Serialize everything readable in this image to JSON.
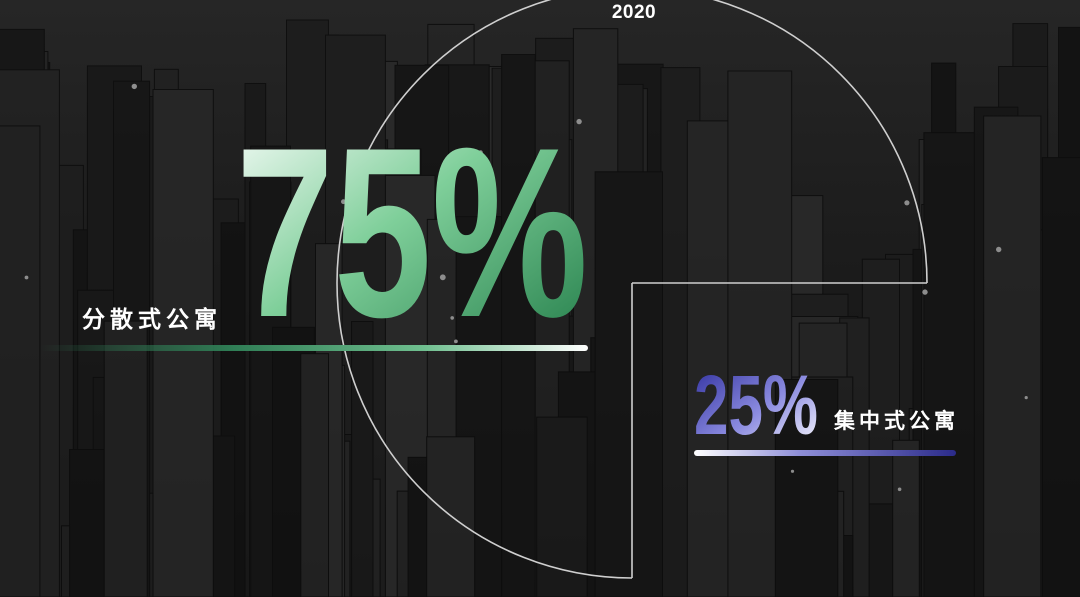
{
  "chart_data": {
    "type": "pie",
    "title": "2020",
    "series": [
      {
        "values": [
          75,
          25
        ],
        "categories": [
          "分散式公寓",
          "集中式公寓"
        ]
      }
    ],
    "slices": [
      {
        "label": "分散式公寓",
        "value": 75,
        "display": "75%",
        "color": "#3a9a63"
      },
      {
        "label": "集中式公寓",
        "value": 25,
        "display": "25%",
        "color": "#3b3bb0"
      }
    ],
    "style": "outline circle with 25% quarter cut out, city skyline background"
  }
}
